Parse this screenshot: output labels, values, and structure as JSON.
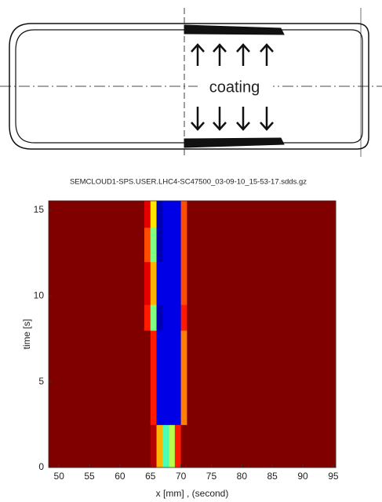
{
  "diagram": {
    "label": "coating"
  },
  "chart_data": {
    "type": "heatmap",
    "title": "SEMCLOUD1-SPS.USER.LHC4-SC47500_03-09-10_15-53-17.sdds.gz",
    "xlabel": "x [mm]  , (second)",
    "ylabel": "time [s]",
    "xlim": [
      48.3,
      95.4
    ],
    "ylim": [
      0,
      15.55
    ],
    "xticks": [
      50,
      55,
      60,
      65,
      70,
      75,
      80,
      85,
      90,
      95
    ],
    "yticks": [
      0,
      5,
      10,
      15
    ],
    "colormap": "jet",
    "xbins": [
      48.3,
      64,
      65,
      66,
      67,
      68,
      69,
      70,
      71,
      95.4
    ],
    "ybins": [
      0,
      2.5,
      8,
      9.5,
      12,
      14,
      15.55
    ],
    "z": [
      [
        1,
        1,
        0.95,
        0.7,
        0.45,
        0.55,
        0.85,
        1,
        1
      ],
      [
        1,
        1,
        0.85,
        0.1,
        0.1,
        0.1,
        0.1,
        0.75,
        1
      ],
      [
        1,
        0.85,
        0.5,
        0.05,
        0.1,
        0.1,
        0.1,
        0.85,
        1
      ],
      [
        1,
        0.9,
        0.7,
        0.1,
        0.1,
        0.1,
        0.1,
        0.8,
        1
      ],
      [
        1,
        0.8,
        0.5,
        0.05,
        0.1,
        0.1,
        0.1,
        0.8,
        1
      ],
      [
        1,
        0.9,
        0.65,
        0.05,
        0.1,
        0.1,
        0.1,
        0.8,
        1
      ]
    ]
  }
}
